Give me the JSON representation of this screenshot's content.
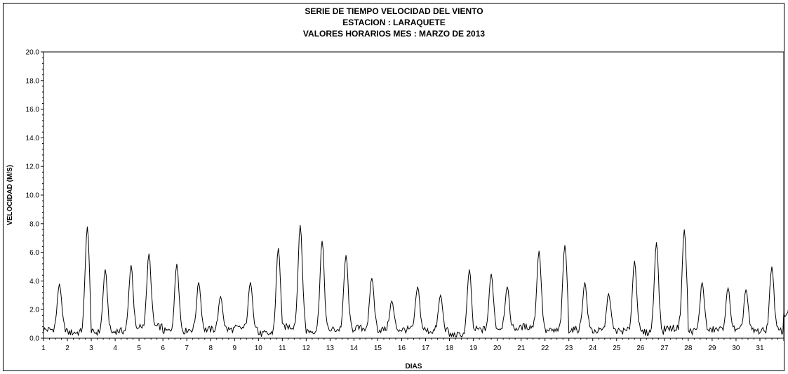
{
  "chart_data": {
    "type": "line",
    "title": "SERIE DE TIEMPO VELOCIDAD DEL VIENTO",
    "subtitle_1": "ESTACION : LARAQUETE",
    "subtitle_2": "VALORES HORARIOS MES : MARZO DE 2013",
    "xlabel": "DIAS",
    "ylabel": "VELOCIDAD  (M/S)",
    "ylim": [
      0,
      20
    ],
    "yticks": [
      "0.0",
      "2.0",
      "4.0",
      "6.0",
      "8.0",
      "10.0",
      "12.0",
      "14.0",
      "16.0",
      "18.0",
      "20.0"
    ],
    "xlim": [
      1,
      32
    ],
    "xticks": [
      "1",
      "2",
      "3",
      "4",
      "5",
      "6",
      "7",
      "8",
      "9",
      "10",
      "11",
      "12",
      "13",
      "14",
      "15",
      "16",
      "17",
      "18",
      "19",
      "20",
      "21",
      "22",
      "23",
      "24",
      "25",
      "26",
      "27",
      "28",
      "29",
      "30",
      "31"
    ],
    "grid": false,
    "line_color": "#000000",
    "series": [
      {
        "name": "",
        "daily": [
          {
            "day": 1,
            "min": 0.6,
            "peak": 3.8,
            "peak_hour": 16
          },
          {
            "day": 2,
            "min": 0.4,
            "peak": 7.8,
            "peak_hour": 20
          },
          {
            "day": 3,
            "min": 0.4,
            "peak": 4.8,
            "peak_hour": 14
          },
          {
            "day": 4,
            "min": 0.5,
            "peak": 5.1,
            "peak_hour": 16
          },
          {
            "day": 5,
            "min": 0.8,
            "peak": 5.9,
            "peak_hour": 10
          },
          {
            "day": 6,
            "min": 0.5,
            "peak": 5.2,
            "peak_hour": 14
          },
          {
            "day": 7,
            "min": 0.6,
            "peak": 3.9,
            "peak_hour": 12
          },
          {
            "day": 8,
            "min": 0.6,
            "peak": 2.9,
            "peak_hour": 10
          },
          {
            "day": 9,
            "min": 0.7,
            "peak": 3.9,
            "peak_hour": 16
          },
          {
            "day": 10,
            "min": 0.3,
            "peak": 6.3,
            "peak_hour": 20
          },
          {
            "day": 11,
            "min": 0.8,
            "peak": 7.9,
            "peak_hour": 18
          },
          {
            "day": 12,
            "min": 0.5,
            "peak": 6.8,
            "peak_hour": 16
          },
          {
            "day": 13,
            "min": 0.6,
            "peak": 5.8,
            "peak_hour": 16
          },
          {
            "day": 14,
            "min": 0.7,
            "peak": 4.2,
            "peak_hour": 18
          },
          {
            "day": 15,
            "min": 0.6,
            "peak": 2.6,
            "peak_hour": 14
          },
          {
            "day": 16,
            "min": 0.6,
            "peak": 3.6,
            "peak_hour": 16
          },
          {
            "day": 17,
            "min": 0.5,
            "peak": 3.0,
            "peak_hour": 15
          },
          {
            "day": 18,
            "min": 0.2,
            "peak": 4.8,
            "peak_hour": 20
          },
          {
            "day": 19,
            "min": 0.6,
            "peak": 4.5,
            "peak_hour": 18
          },
          {
            "day": 20,
            "min": 0.7,
            "peak": 3.6,
            "peak_hour": 10
          },
          {
            "day": 21,
            "min": 0.8,
            "peak": 6.1,
            "peak_hour": 18
          },
          {
            "day": 22,
            "min": 0.5,
            "peak": 6.5,
            "peak_hour": 20
          },
          {
            "day": 23,
            "min": 0.6,
            "peak": 3.9,
            "peak_hour": 16
          },
          {
            "day": 24,
            "min": 0.5,
            "peak": 3.1,
            "peak_hour": 16
          },
          {
            "day": 25,
            "min": 0.5,
            "peak": 5.4,
            "peak_hour": 18
          },
          {
            "day": 26,
            "min": 0.4,
            "peak": 6.7,
            "peak_hour": 16
          },
          {
            "day": 27,
            "min": 0.7,
            "peak": 7.6,
            "peak_hour": 20
          },
          {
            "day": 28,
            "min": 0.5,
            "peak": 3.9,
            "peak_hour": 14
          },
          {
            "day": 29,
            "min": 0.6,
            "peak": 3.5,
            "peak_hour": 16
          },
          {
            "day": 30,
            "min": 0.5,
            "peak": 3.4,
            "peak_hour": 10
          },
          {
            "day": 31,
            "min": 0.5,
            "peak": 5.0,
            "peak_hour": 12
          },
          {
            "day": 32,
            "min": 1.6,
            "peak": 3.6,
            "peak_hour": 8
          }
        ]
      }
    ]
  }
}
